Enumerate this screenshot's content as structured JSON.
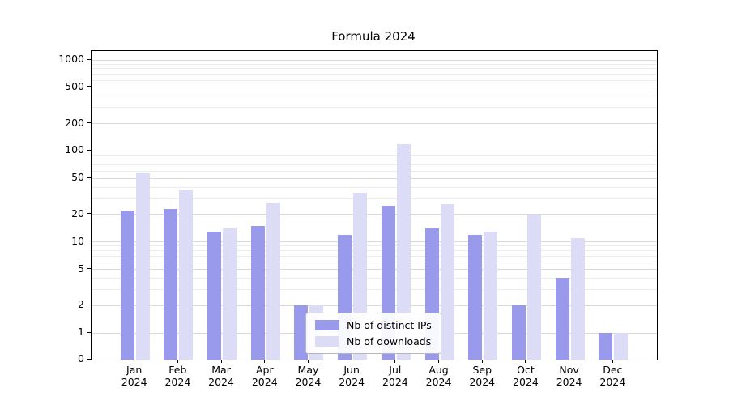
{
  "chart_data": {
    "type": "bar",
    "title": "Formula 2024",
    "categories": [
      "Jan 2024",
      "Feb 2024",
      "Mar 2024",
      "Apr 2024",
      "May 2024",
      "Jun 2024",
      "Jul 2024",
      "Aug 2024",
      "Sep 2024",
      "Oct 2024",
      "Nov 2024",
      "Dec 2024"
    ],
    "series": [
      {
        "name": "Nb of distinct IPs",
        "color": "#9a9aec",
        "values": [
          22,
          23,
          13,
          15,
          2,
          12,
          25,
          14,
          12,
          2,
          4,
          1
        ]
      },
      {
        "name": "Nb of downloads",
        "color": "#dcdcf7",
        "values": [
          57,
          38,
          14,
          27,
          2,
          35,
          120,
          26,
          13,
          20,
          11,
          1
        ]
      }
    ],
    "yscale": "symlog",
    "yticks": [
      0,
      1,
      2,
      5,
      10,
      20,
      50,
      100,
      200,
      500,
      1000
    ],
    "ylim": [
      0,
      1300
    ],
    "xlabel": "",
    "ylabel": "",
    "grid": true,
    "legend_position": "lower-center-inside",
    "colors": {
      "grid_major": "#d9d9d9",
      "grid_minor": "#ececec",
      "axis": "#000000",
      "background": "#ffffff"
    }
  }
}
